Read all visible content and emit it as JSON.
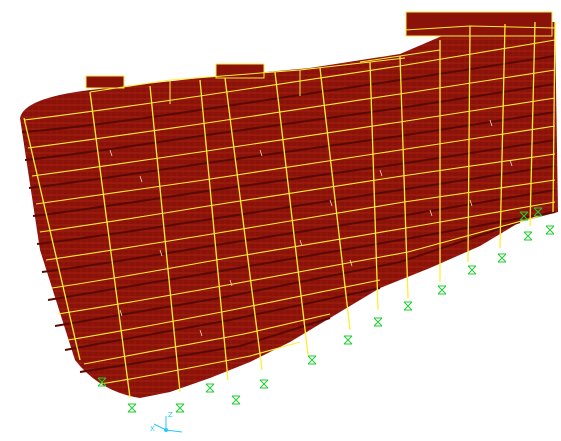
{
  "viewport": {
    "background": "#ffffff",
    "floor_slab_color": "#8b1208",
    "floor_slab_hatch": "#c83a22",
    "frame_color": "#ffee33",
    "support_color": "#22cc33",
    "axis_color": "#27c8ff",
    "story_count": 10,
    "support_icon": "fixed-support-icon"
  },
  "axes": {
    "x_label": "X",
    "z_label": "Z"
  }
}
